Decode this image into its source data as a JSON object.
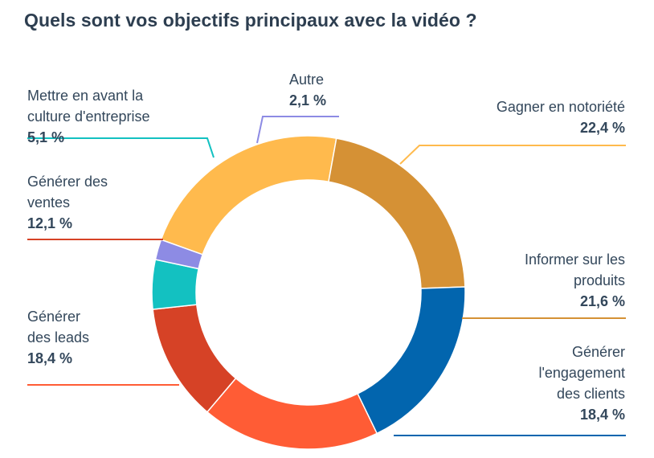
{
  "title": "Quels sont vos objectifs principaux avec la vidéo ?",
  "chart_data": {
    "type": "donut",
    "title": "Quels sont vos objectifs principaux avec la vidéo ?",
    "slices": [
      {
        "id": "s0",
        "label_lines": [
          "Gagner en notoriété"
        ],
        "value_text": "22,4 %",
        "value": 22.4,
        "color": "#FFBA4D"
      },
      {
        "id": "s1",
        "label_lines": [
          "Informer sur les",
          "produits"
        ],
        "value_text": "21,6 %",
        "value": 21.6,
        "color": "#D59135"
      },
      {
        "id": "s2",
        "label_lines": [
          "Générer",
          "l'engagement",
          "des clients"
        ],
        "value_text": "18,4 %",
        "value": 18.4,
        "color": "#0265AE"
      },
      {
        "id": "s3",
        "label_lines": [
          "Générer",
          "des leads"
        ],
        "value_text": "18,4 %",
        "value": 18.4,
        "color": "#FF5C35"
      },
      {
        "id": "s4",
        "label_lines": [
          "Générer des",
          "ventes"
        ],
        "value_text": "12,1 %",
        "value": 12.1,
        "color": "#D64226"
      },
      {
        "id": "s5",
        "label_lines": [
          "Mettre en avant la",
          "culture d'entreprise"
        ],
        "value_text": "5,1 %",
        "value": 5.1,
        "color": "#13C1C1"
      },
      {
        "id": "s6",
        "label_lines": [
          "Autre"
        ],
        "value_text": "2,1 %",
        "value": 2.1,
        "color": "#8D8BE4"
      }
    ]
  }
}
